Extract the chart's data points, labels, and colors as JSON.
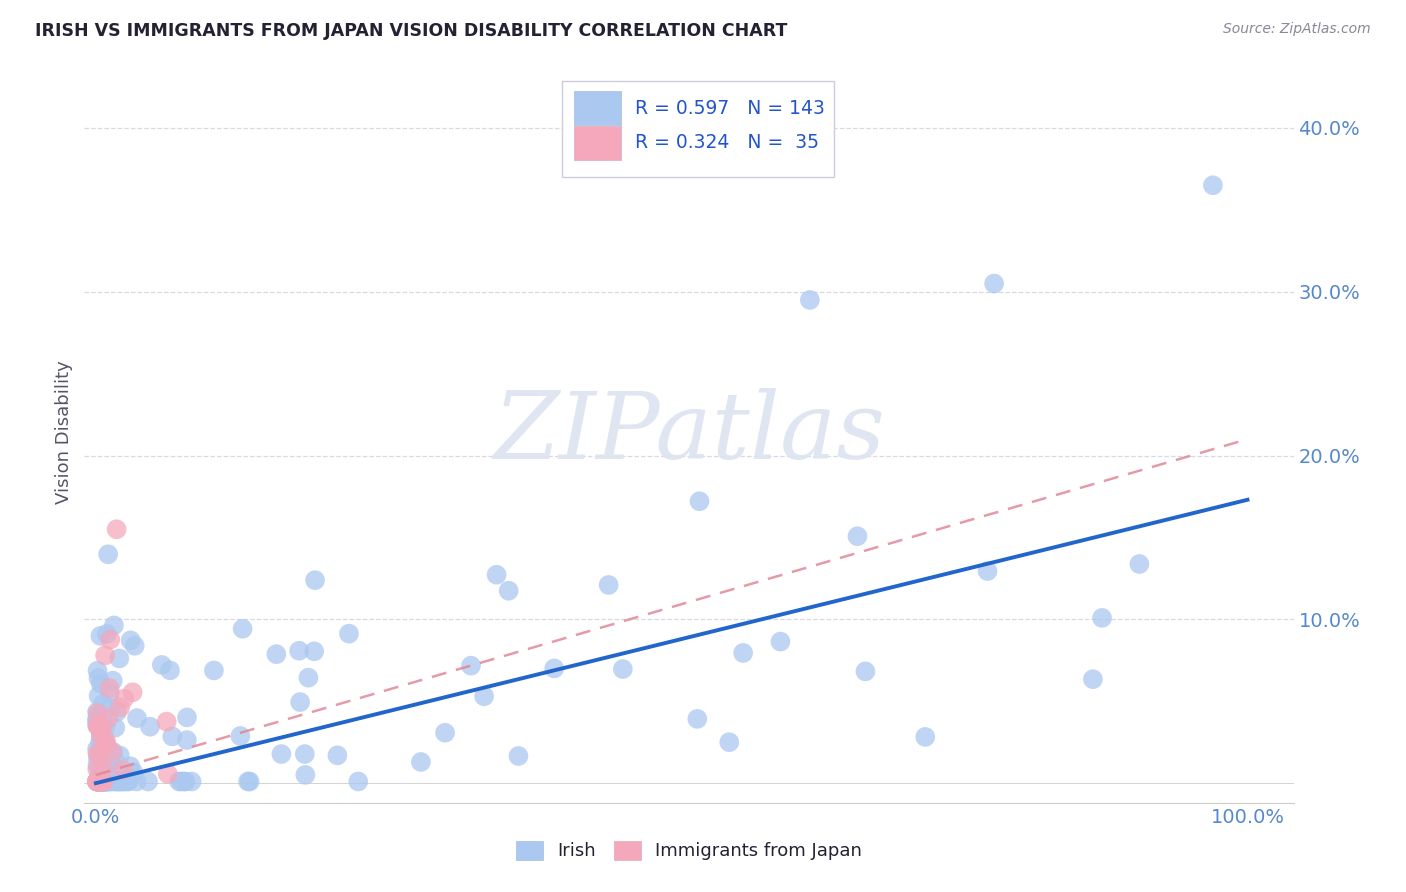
{
  "title": "IRISH VS IMMIGRANTS FROM JAPAN VISION DISABILITY CORRELATION CHART",
  "source": "Source: ZipAtlas.com",
  "ylabel": "Vision Disability",
  "ytick_positions": [
    0.0,
    0.1,
    0.2,
    0.3,
    0.4
  ],
  "ytick_labels": [
    "",
    "10.0%",
    "20.0%",
    "30.0%",
    "40.0%"
  ],
  "xlim": [
    -0.01,
    1.04
  ],
  "ylim": [
    -0.012,
    0.44
  ],
  "legend_irish_R": "0.597",
  "legend_irish_N": "143",
  "legend_japan_R": "0.324",
  "legend_japan_N": " 35",
  "irish_color": "#aac8f0",
  "japan_color": "#f5a8bc",
  "irish_line_color": "#2266cc",
  "japan_line_color": "#e08898",
  "grid_color": "#d0d0e0",
  "background_color": "#ffffff",
  "title_color": "#222233",
  "source_color": "#888899",
  "ylabel_color": "#555566",
  "tick_color": "#5588cc",
  "watermark_color": "#dde4f0",
  "irish_line_x0": 0.0,
  "irish_line_y0": 0.0,
  "irish_line_x1": 1.0,
  "irish_line_y1": 0.173,
  "japan_line_x0": 0.0,
  "japan_line_y0": 0.005,
  "japan_line_x1": 1.0,
  "japan_line_y1": 0.21,
  "irish_seed": 77,
  "japan_seed": 42
}
